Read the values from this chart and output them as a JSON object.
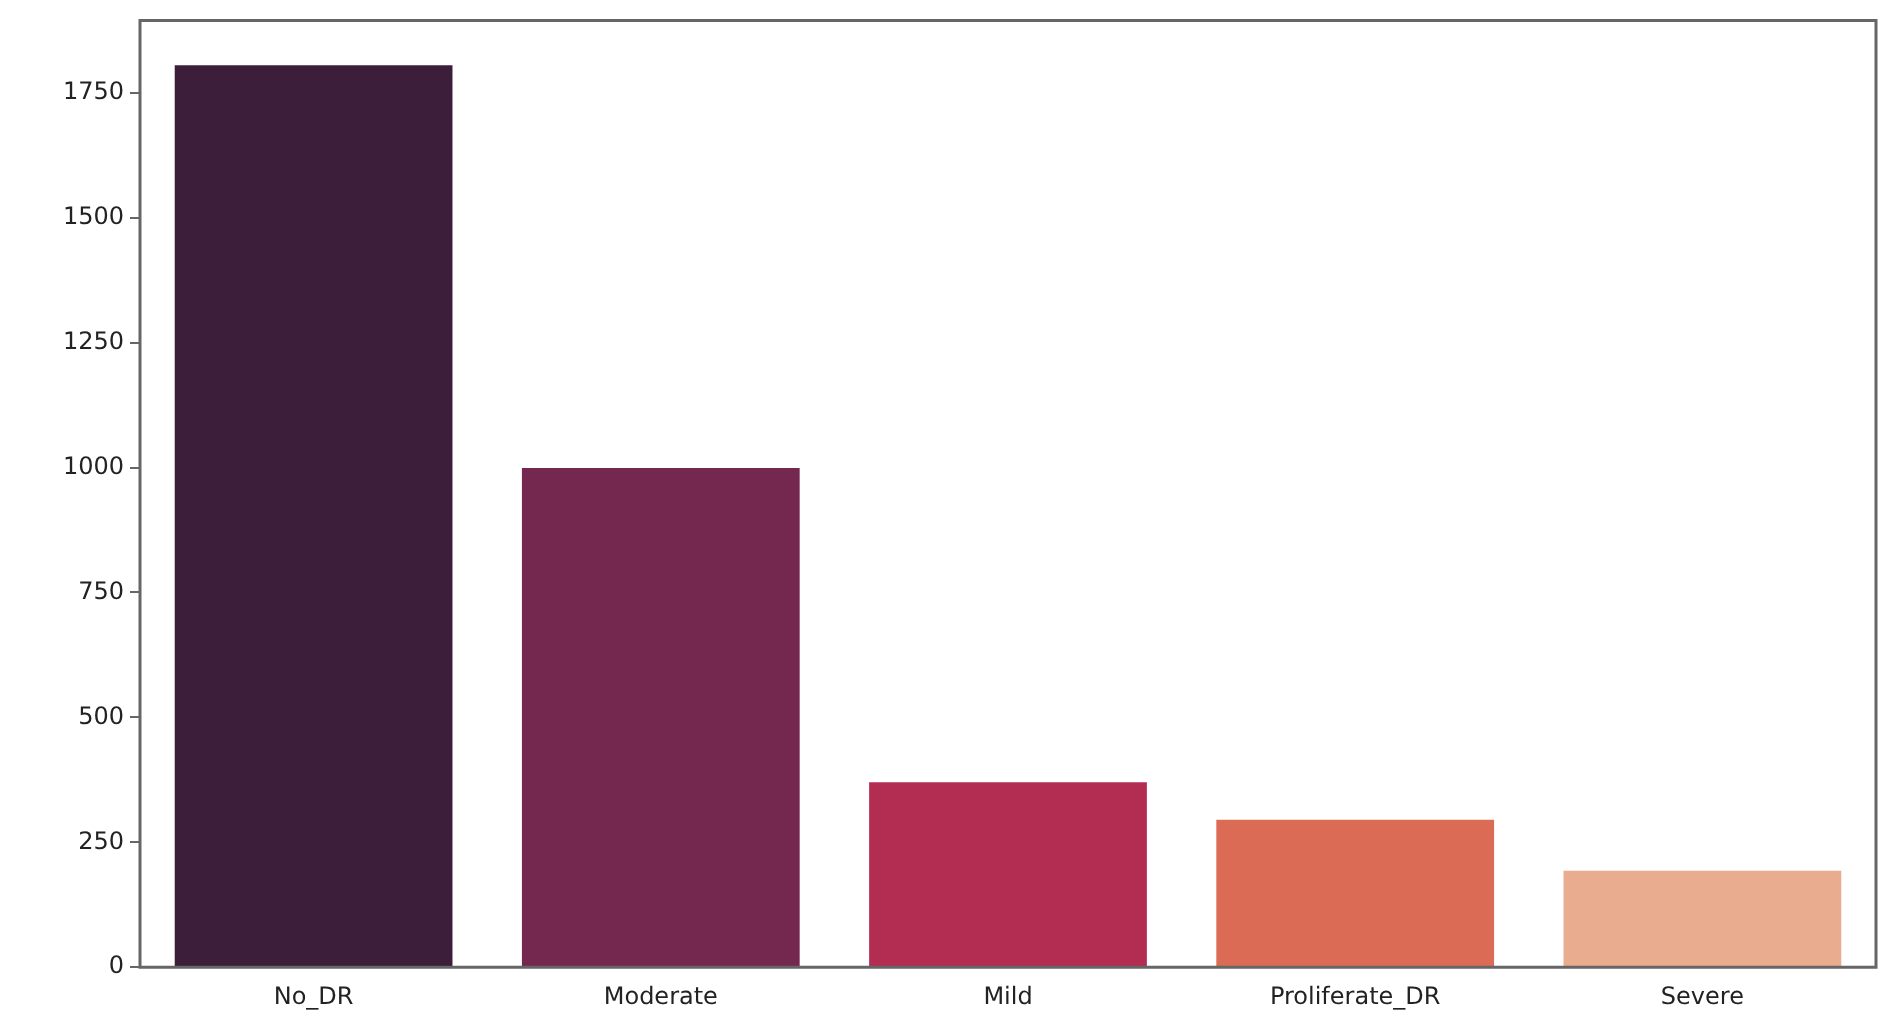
{
  "chart_data": {
    "type": "bar",
    "categories": [
      "No_DR",
      "Moderate",
      "Mild",
      "Proliferate_DR",
      "Severe"
    ],
    "values": [
      1805,
      999,
      370,
      295,
      193
    ],
    "colors": [
      "#3c1e3a",
      "#75284f",
      "#b32d53",
      "#dc6b55",
      "#e9ac8e"
    ],
    "ylim": [
      0,
      1895
    ],
    "yticks": [
      0,
      250,
      500,
      750,
      1000,
      1250,
      1500,
      1750
    ],
    "grid": false,
    "legend": false
  }
}
